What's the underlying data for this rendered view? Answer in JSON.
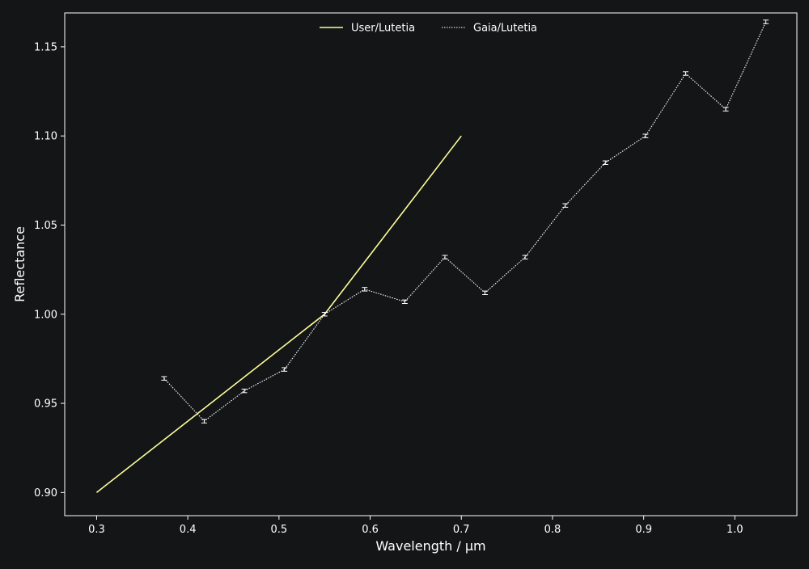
{
  "chart_data": {
    "type": "line",
    "xlabel": "Wavelength / µm",
    "ylabel": "Reflectance",
    "xlim": [
      0.265,
      1.068
    ],
    "ylim": [
      0.887,
      1.169
    ],
    "xticks": [
      0.3,
      0.4,
      0.5,
      0.6,
      0.7,
      0.8,
      0.9,
      1.0
    ],
    "xtick_labels": [
      "0.3",
      "0.4",
      "0.5",
      "0.6",
      "0.7",
      "0.8",
      "0.9",
      "1.0"
    ],
    "yticks": [
      0.9,
      0.95,
      1.0,
      1.05,
      1.1,
      1.15
    ],
    "ytick_labels": [
      "0.90",
      "0.95",
      "1.00",
      "1.05",
      "1.10",
      "1.15"
    ],
    "grid": false,
    "legend_position": "top-center",
    "background_color": "#131517",
    "series": [
      {
        "name": "User/Lutetia",
        "style": "solid",
        "color": "#ffff99",
        "x": [
          0.3,
          0.55,
          0.7
        ],
        "y": [
          0.9,
          1.0,
          1.1
        ]
      },
      {
        "name": "Gaia/Lutetia",
        "style": "dotted",
        "color": "#ffffff",
        "error_bars": true,
        "x": [
          0.374,
          0.418,
          0.462,
          0.506,
          0.55,
          0.594,
          0.638,
          0.682,
          0.726,
          0.77,
          0.814,
          0.858,
          0.902,
          0.946,
          0.99,
          1.034
        ],
        "y": [
          0.964,
          0.94,
          0.957,
          0.969,
          1.0,
          1.014,
          1.007,
          1.032,
          1.012,
          1.032,
          1.061,
          1.085,
          1.1,
          1.135,
          1.115,
          1.164
        ],
        "yerr": [
          0.001,
          0.001,
          0.001,
          0.001,
          0.001,
          0.001,
          0.001,
          0.001,
          0.001,
          0.001,
          0.001,
          0.001,
          0.001,
          0.001,
          0.001,
          0.001
        ]
      }
    ]
  }
}
